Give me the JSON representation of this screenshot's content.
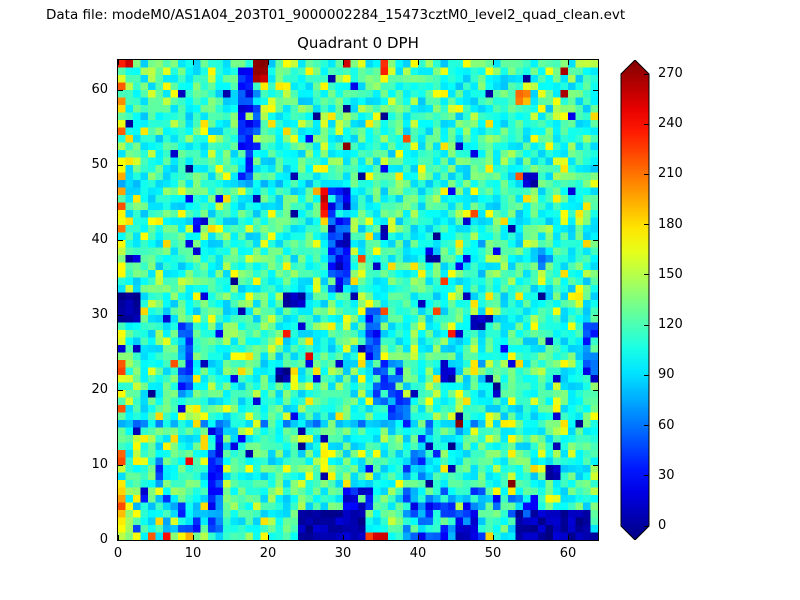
{
  "header": {
    "data_file_label": "Data file: modeM0/AS1A04_203T01_9000002284_15473cztM0_level2_quad_clean.evt"
  },
  "chart_data": {
    "type": "heatmap",
    "title": "Quadrant 0 DPH",
    "xlabel": "",
    "ylabel": "",
    "x_range": [
      0,
      64
    ],
    "y_range": [
      0,
      64
    ],
    "x_ticks": [
      0,
      10,
      20,
      30,
      40,
      50,
      60
    ],
    "y_ticks": [
      0,
      10,
      20,
      30,
      40,
      50,
      60
    ],
    "grid_size": 64,
    "colormap": "jet",
    "grid": false,
    "legend": "none",
    "colorbar": {
      "min": 0,
      "max": 270,
      "ticks": [
        0,
        30,
        60,
        90,
        120,
        150,
        180,
        210,
        240,
        270
      ],
      "extend": "both",
      "under_color": "#000080",
      "over_color": "#800000"
    },
    "value_model": {
      "seed": 7,
      "base": {
        "value": 112,
        "noise": 26
      },
      "speckle": {
        "low": {
          "prob": 0.025,
          "value": 18,
          "noise": 15
        },
        "hot": {
          "prob": 0.004,
          "value": 240,
          "noise": 30
        },
        "high": {
          "prob": 0.13,
          "value": 158,
          "noise": 22
        }
      },
      "features": [
        {
          "x": 0,
          "y": 0,
          "w": 1,
          "h": 64,
          "value": 165,
          "noise": 55,
          "fill": 0.8
        },
        {
          "x": 0,
          "y": 0,
          "w": 11,
          "h": 1,
          "value": 185,
          "noise": 55,
          "fill": 0.9
        },
        {
          "x": 33,
          "y": 0,
          "w": 3,
          "h": 1,
          "value": 220,
          "noise": 30,
          "fill": 1
        },
        {
          "x": 24,
          "y": 0,
          "w": 9,
          "h": 4,
          "value": 12,
          "noise": 12,
          "fill": 1
        },
        {
          "x": 30,
          "y": 4,
          "w": 4,
          "h": 3,
          "value": 30,
          "noise": 20,
          "fill": 0.8
        },
        {
          "x": 53,
          "y": 0,
          "w": 10,
          "h": 4,
          "value": 12,
          "noise": 12,
          "fill": 1
        },
        {
          "x": 50,
          "y": 3,
          "w": 6,
          "h": 3,
          "value": 45,
          "noise": 25,
          "fill": 0.7
        },
        {
          "x": 38,
          "y": 0,
          "w": 11,
          "h": 7,
          "value": 55,
          "noise": 30,
          "fill": 0.6
        },
        {
          "x": 45,
          "y": 0,
          "w": 3,
          "h": 3,
          "value": 20,
          "noise": 15,
          "fill": 0.8
        },
        {
          "x": 2,
          "y": 1,
          "w": 9,
          "h": 5,
          "value": 70,
          "noise": 35,
          "fill": 0.4
        },
        {
          "x": 12,
          "y": 1,
          "w": 2,
          "h": 14,
          "value": 55,
          "noise": 30,
          "fill": 0.85
        },
        {
          "x": 5,
          "y": 5,
          "w": 3,
          "h": 6,
          "value": 70,
          "noise": 30,
          "fill": 0.5
        },
        {
          "x": 0,
          "y": 15,
          "w": 40,
          "h": 1,
          "value": 85,
          "noise": 25,
          "fill": 0.8
        },
        {
          "x": 8,
          "y": 19,
          "w": 2,
          "h": 10,
          "value": 65,
          "noise": 30,
          "fill": 0.8
        },
        {
          "x": 0,
          "y": 29,
          "w": 3,
          "h": 4,
          "value": 8,
          "noise": 8,
          "fill": 1
        },
        {
          "x": 22,
          "y": 31,
          "w": 3,
          "h": 2,
          "value": 15,
          "noise": 10,
          "fill": 0.8
        },
        {
          "x": 16,
          "y": 47,
          "w": 2,
          "h": 16,
          "value": 35,
          "noise": 25,
          "fill": 0.9
        },
        {
          "x": 18,
          "y": 52,
          "w": 1,
          "h": 8,
          "value": 70,
          "noise": 30,
          "fill": 0.6
        },
        {
          "x": 28,
          "y": 33,
          "w": 3,
          "h": 14,
          "value": 40,
          "noise": 28,
          "fill": 0.9
        },
        {
          "x": 27,
          "y": 43,
          "w": 1,
          "h": 4,
          "value": 245,
          "noise": 20,
          "fill": 1
        },
        {
          "x": 26,
          "y": 46,
          "w": 1,
          "h": 2,
          "value": 210,
          "noise": 25,
          "fill": 1
        },
        {
          "x": 33,
          "y": 24,
          "w": 2,
          "h": 7,
          "value": 50,
          "noise": 25,
          "fill": 0.9
        },
        {
          "x": 34,
          "y": 18,
          "w": 4,
          "h": 6,
          "value": 55,
          "noise": 25,
          "fill": 0.7
        },
        {
          "x": 36,
          "y": 16,
          "w": 3,
          "h": 4,
          "value": 60,
          "noise": 25,
          "fill": 0.6
        },
        {
          "x": 38,
          "y": 8,
          "w": 5,
          "h": 8,
          "value": 65,
          "noise": 30,
          "fill": 0.5
        },
        {
          "x": 40,
          "y": 14,
          "w": 8,
          "h": 2,
          "value": 80,
          "noise": 30,
          "fill": 0.5
        },
        {
          "x": 0,
          "y": 47,
          "w": 32,
          "h": 1,
          "value": 95,
          "noise": 20,
          "fill": 0.6
        },
        {
          "x": 48,
          "y": 16,
          "w": 1,
          "h": 31,
          "value": 95,
          "noise": 20,
          "fill": 0.5
        },
        {
          "x": 62,
          "y": 22,
          "w": 2,
          "h": 7,
          "value": 45,
          "noise": 30,
          "fill": 0.8
        },
        {
          "x": 56,
          "y": 34,
          "w": 2,
          "h": 5,
          "value": 70,
          "noise": 30,
          "fill": 0.6
        },
        {
          "x": 21,
          "y": 21,
          "w": 2,
          "h": 2,
          "value": 10,
          "noise": 10,
          "fill": 1
        },
        {
          "x": 43,
          "y": 21,
          "w": 2,
          "h": 3,
          "value": 15,
          "noise": 10,
          "fill": 0.8
        },
        {
          "x": 47,
          "y": 28,
          "w": 2,
          "h": 2,
          "value": 15,
          "noise": 10,
          "fill": 0.8
        },
        {
          "x": 57,
          "y": 8,
          "w": 2,
          "h": 2,
          "value": 15,
          "noise": 10,
          "fill": 0.8
        },
        {
          "x": 41,
          "y": 37,
          "w": 2,
          "h": 2,
          "value": 20,
          "noise": 15,
          "fill": 0.7
        },
        {
          "x": 54,
          "y": 47,
          "w": 2,
          "h": 2,
          "value": 20,
          "noise": 15,
          "fill": 0.7
        },
        {
          "x": 10,
          "y": 41,
          "w": 2,
          "h": 2,
          "value": 25,
          "noise": 15,
          "fill": 0.7
        },
        {
          "x": 18,
          "y": 61,
          "w": 2,
          "h": 3,
          "value": 255,
          "noise": 15,
          "fill": 1
        },
        {
          "x": 0,
          "y": 63,
          "w": 2,
          "h": 1,
          "value": 235,
          "noise": 20,
          "fill": 1
        },
        {
          "x": 30,
          "y": 63,
          "w": 1,
          "h": 1,
          "value": 255,
          "noise": 10,
          "fill": 1
        },
        {
          "x": 35,
          "y": 62,
          "w": 1,
          "h": 2,
          "value": 230,
          "noise": 20,
          "fill": 1
        },
        {
          "x": 53,
          "y": 58,
          "w": 2,
          "h": 2,
          "value": 190,
          "noise": 30,
          "fill": 0.8
        }
      ]
    }
  }
}
